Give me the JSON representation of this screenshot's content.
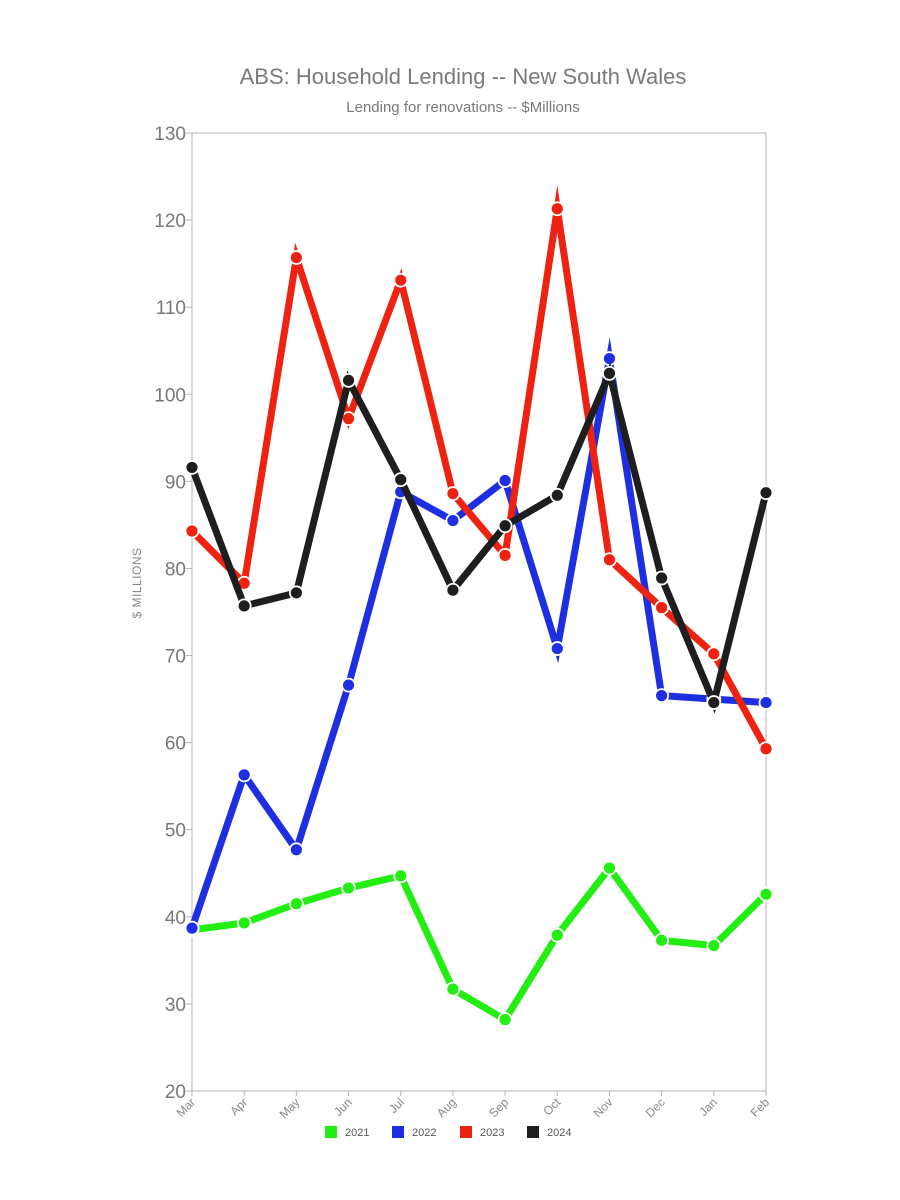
{
  "chart_data": {
    "type": "line",
    "title": "ABS: Household Lending -- New South Wales",
    "subtitle": "Lending for renovations -- $Millions",
    "ylabel": "$ MILLIONS",
    "xlabel": "",
    "categories": [
      "Mar",
      "Apr",
      "May",
      "Jun",
      "Jul",
      "Aug",
      "Sep",
      "Oct",
      "Nov",
      "Dec",
      "Jan",
      "Feb"
    ],
    "ylim": [
      20,
      130
    ],
    "yticks": [
      20,
      30,
      40,
      50,
      60,
      70,
      80,
      90,
      100,
      110,
      120,
      130
    ],
    "grid": false,
    "legend_position": "bottom",
    "series": [
      {
        "name": "2021",
        "color": "#22ee11",
        "values": [
          38.5,
          39.3,
          41.5,
          43.3,
          44.7,
          31.7,
          28.2,
          37.9,
          45.6,
          37.3,
          36.7,
          42.6
        ]
      },
      {
        "name": "2022",
        "color": "#1d2fe0",
        "values": [
          38.7,
          56.3,
          47.7,
          66.6,
          88.8,
          85.5,
          90.1,
          70.8,
          104.1,
          65.4,
          65.0,
          64.6
        ]
      },
      {
        "name": "2023",
        "color": "#ee2211",
        "values": [
          84.3,
          78.3,
          115.7,
          97.2,
          113.1,
          88.6,
          81.5,
          121.3,
          81.0,
          75.5,
          70.2,
          59.3
        ]
      },
      {
        "name": "2024",
        "color": "#1e1e1e",
        "values": [
          91.6,
          75.7,
          77.2,
          101.6,
          90.2,
          77.5,
          84.9,
          88.4,
          102.4,
          78.9,
          64.6,
          88.7
        ]
      }
    ]
  }
}
